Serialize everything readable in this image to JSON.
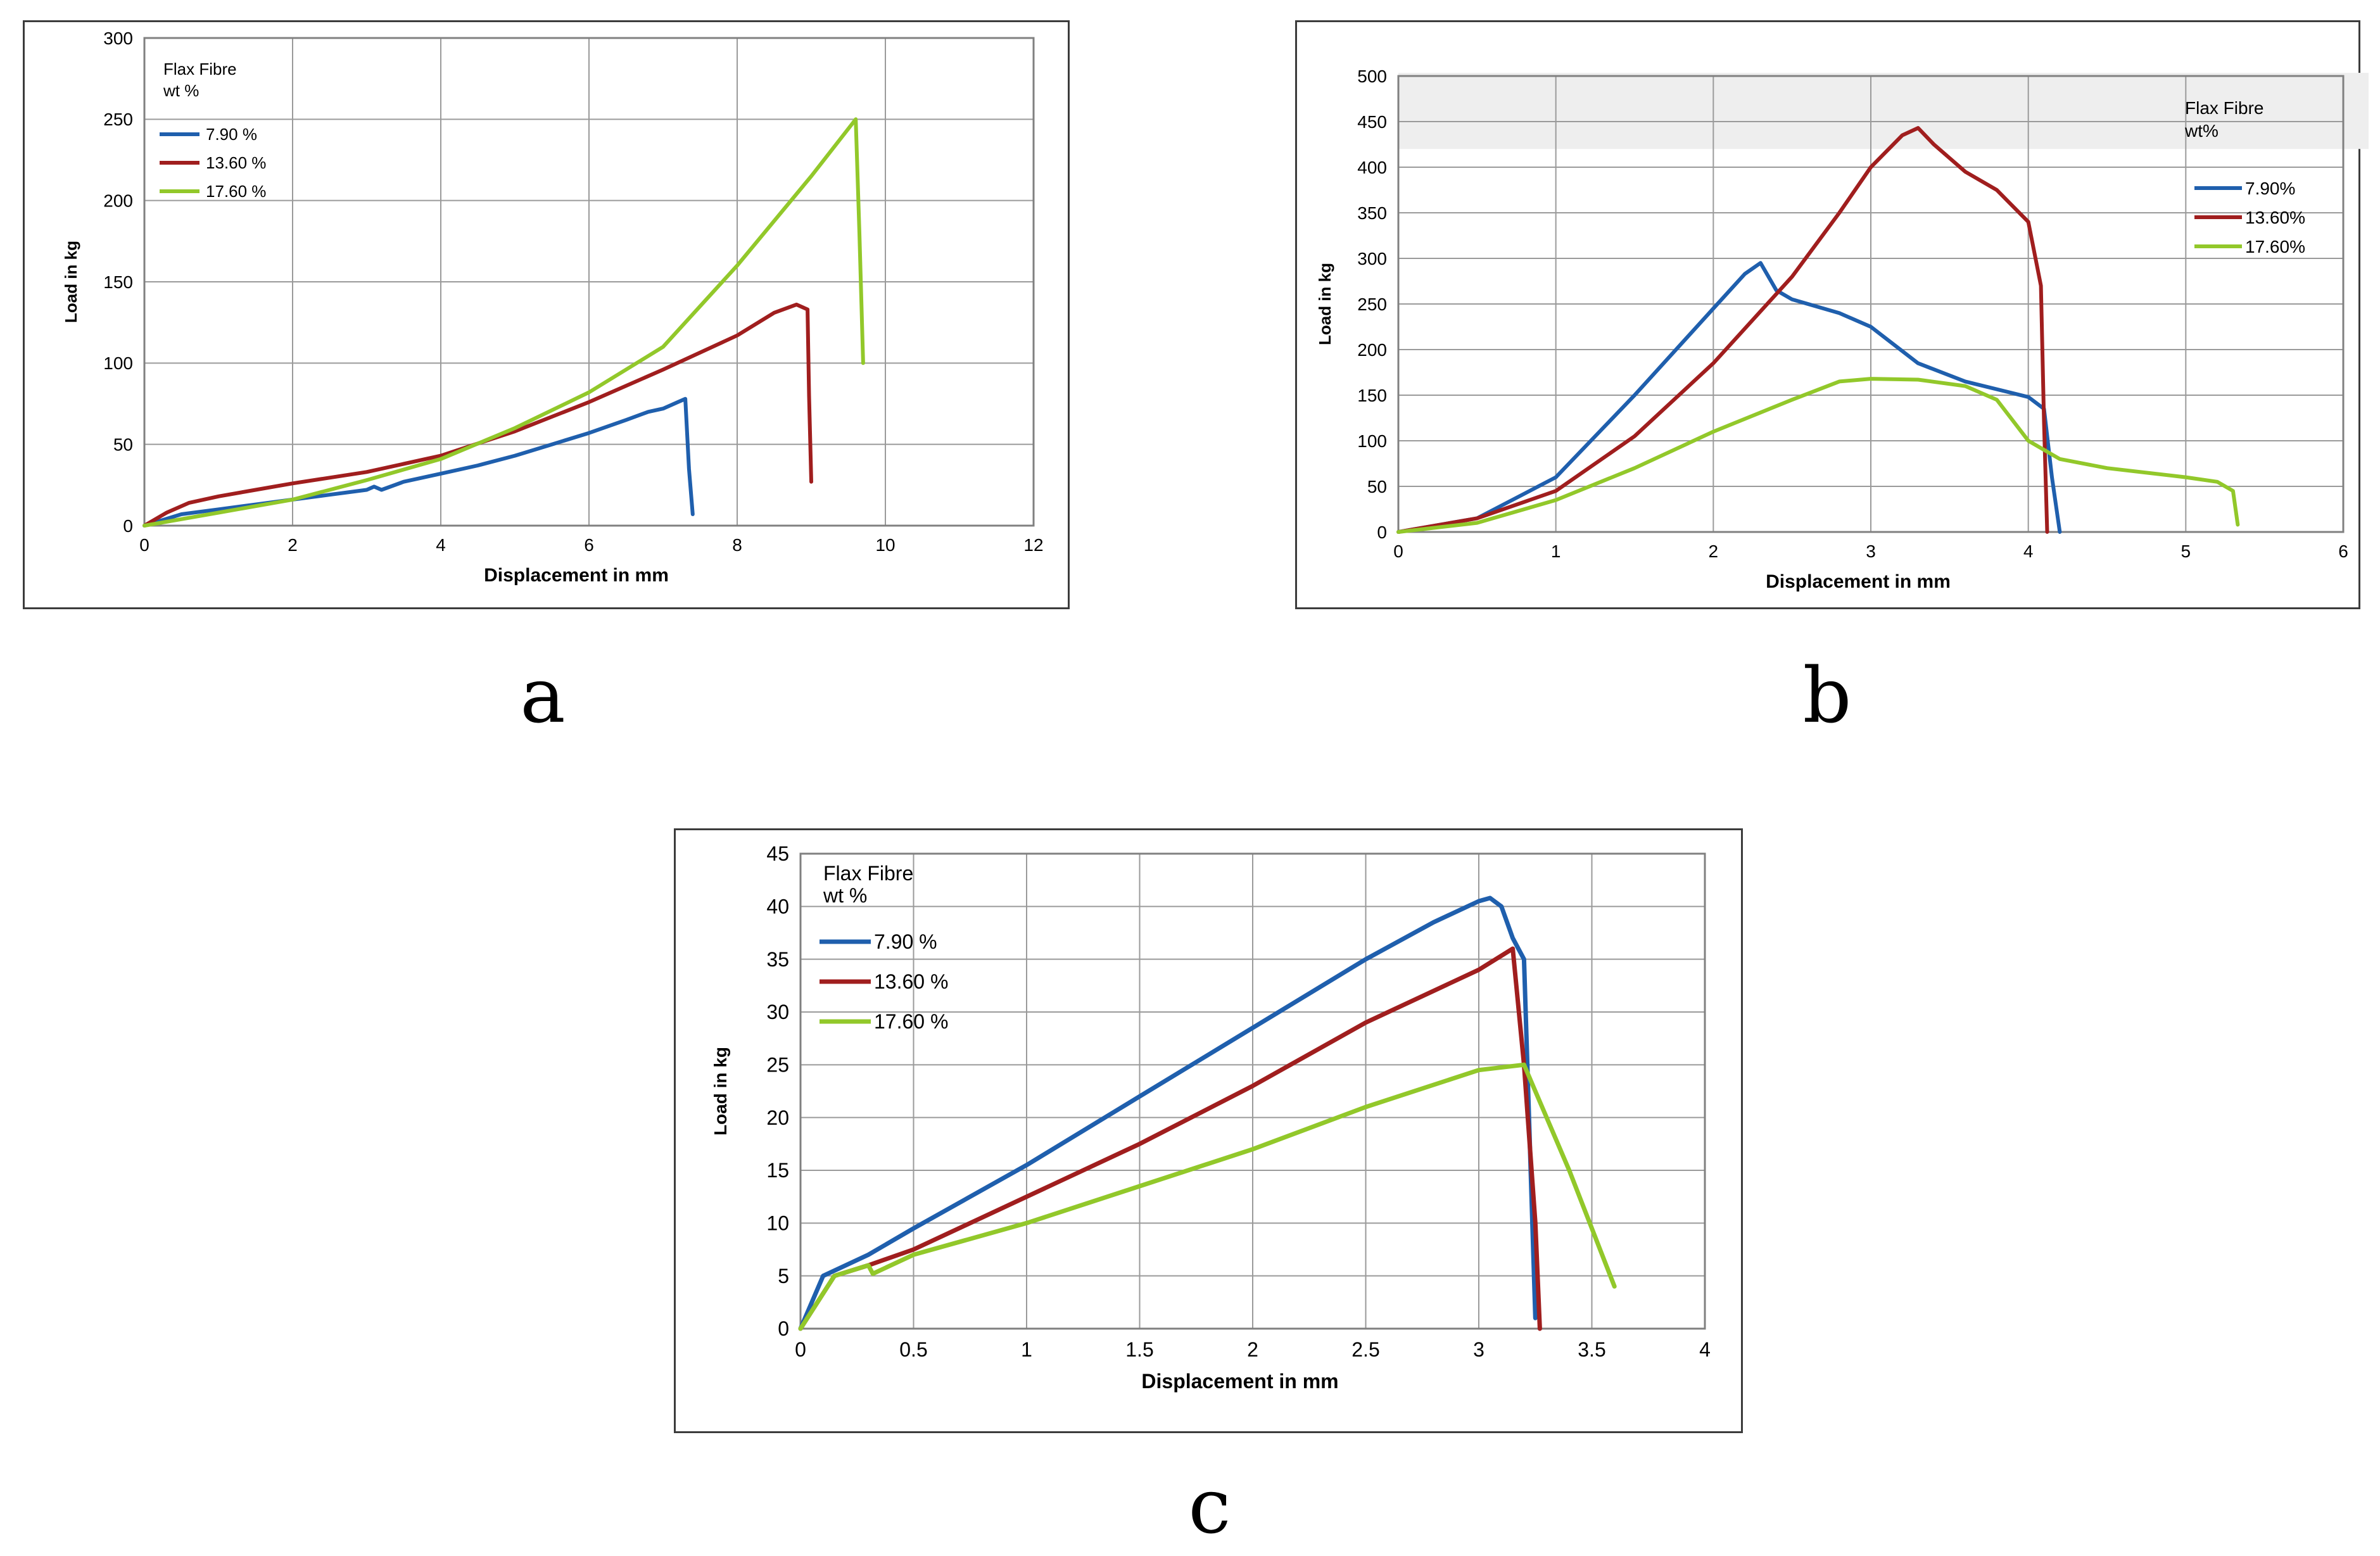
{
  "colors": {
    "s1": "#1f5fad",
    "s2": "#a01e1e",
    "s3": "#92c82a"
  },
  "chart_data": [
    {
      "panel": "a",
      "type": "line",
      "title": "",
      "xlabel": "Displacement in mm",
      "ylabel": "Load in kg",
      "xlim": [
        0,
        12
      ],
      "ylim": [
        0,
        300
      ],
      "xticks": [
        0,
        2,
        4,
        6,
        8,
        10,
        12
      ],
      "yticks": [
        0,
        50,
        100,
        150,
        200,
        250,
        300
      ],
      "legend_title": [
        "Flax Fibre",
        "wt %"
      ],
      "legend_position": "top-left",
      "series": [
        {
          "name": "7.90 %",
          "x": [
            0,
            0.5,
            1,
            1.5,
            2,
            2.5,
            3,
            3.1,
            3.2,
            3.5,
            4,
            4.5,
            5,
            5.5,
            6,
            6.5,
            6.8,
            7,
            7.2,
            7.3,
            7.35,
            7.4
          ],
          "y": [
            0,
            7,
            10,
            13,
            16,
            19,
            22,
            24,
            22,
            27,
            32,
            37,
            43,
            50,
            57,
            65,
            70,
            72,
            76,
            78,
            35,
            7
          ]
        },
        {
          "name": "13.60 %",
          "x": [
            0,
            0.3,
            0.6,
            1,
            1.5,
            2,
            3,
            4,
            5,
            6,
            7,
            8,
            8.5,
            8.8,
            8.95,
            8.97,
            9.0
          ],
          "y": [
            0,
            8,
            14,
            18,
            22,
            26,
            33,
            43,
            58,
            76,
            96,
            117,
            131,
            136,
            133,
            80,
            27
          ]
        },
        {
          "name": "17.60 %",
          "x": [
            0,
            1,
            2,
            3,
            4,
            5,
            6,
            7,
            8,
            9,
            9.6,
            9.65,
            9.7
          ],
          "y": [
            0,
            8,
            16,
            28,
            41,
            60,
            82,
            110,
            160,
            215,
            250,
            180,
            100
          ]
        }
      ]
    },
    {
      "panel": "b",
      "type": "line",
      "title": "",
      "xlabel": "Displacement in mm",
      "ylabel": "Load in kg",
      "xlim": [
        0,
        6
      ],
      "ylim": [
        0,
        500
      ],
      "xticks": [
        0,
        1,
        2,
        3,
        4,
        5,
        6
      ],
      "yticks": [
        0,
        50,
        100,
        150,
        200,
        250,
        300,
        350,
        400,
        450,
        500
      ],
      "legend_title": [
        "Flax Fibre",
        "wt%"
      ],
      "legend_position": "top-right",
      "series": [
        {
          "name": "7.90%",
          "x": [
            0,
            0.5,
            1,
            1.5,
            2,
            2.2,
            2.3,
            2.4,
            2.5,
            2.8,
            3,
            3.3,
            3.6,
            4,
            4.1,
            4.15,
            4.2
          ],
          "y": [
            0,
            15,
            60,
            150,
            245,
            283,
            295,
            265,
            255,
            240,
            225,
            185,
            165,
            148,
            135,
            60,
            0
          ]
        },
        {
          "name": "13.60%",
          "x": [
            0,
            0.5,
            1,
            1.5,
            2,
            2.5,
            2.8,
            3,
            3.2,
            3.3,
            3.4,
            3.6,
            3.8,
            4,
            4.08,
            4.1,
            4.12
          ],
          "y": [
            0,
            15,
            45,
            105,
            185,
            280,
            350,
            400,
            435,
            443,
            425,
            395,
            375,
            340,
            270,
            120,
            0
          ]
        },
        {
          "name": "17.60%",
          "x": [
            0,
            0.5,
            1,
            1.5,
            2,
            2.5,
            2.8,
            3,
            3.3,
            3.6,
            3.8,
            4,
            4.2,
            4.5,
            5,
            5.2,
            5.3,
            5.33
          ],
          "y": [
            0,
            10,
            35,
            70,
            110,
            145,
            165,
            168,
            167,
            160,
            145,
            100,
            80,
            70,
            60,
            55,
            45,
            8
          ]
        }
      ]
    },
    {
      "panel": "c",
      "type": "line",
      "title": "",
      "xlabel": "Displacement in mm",
      "ylabel": "Load in kg",
      "xlim": [
        0,
        4
      ],
      "ylim": [
        0,
        45
      ],
      "xticks": [
        0,
        0.5,
        1,
        1.5,
        2,
        2.5,
        3,
        3.5,
        4
      ],
      "xtick_labels": [
        "0",
        "0.5",
        "1",
        "1.5",
        "2",
        "2.5",
        "3",
        "3.5",
        "4"
      ],
      "yticks": [
        0,
        5,
        10,
        15,
        20,
        25,
        30,
        35,
        40,
        45
      ],
      "legend_title": [
        "Flax Fibre",
        "wt %"
      ],
      "legend_position": "top-left",
      "series": [
        {
          "name": "7.90 %",
          "x": [
            0,
            0.1,
            0.3,
            0.5,
            1,
            1.5,
            2,
            2.5,
            2.8,
            3,
            3.05,
            3.1,
            3.15,
            3.2,
            3.25
          ],
          "y": [
            0,
            5,
            7,
            9.5,
            15.5,
            22,
            28.5,
            35,
            38.5,
            40.5,
            40.8,
            40,
            37,
            35,
            1
          ]
        },
        {
          "name": "13.60 %",
          "x": [
            0,
            0.15,
            0.3,
            0.5,
            1,
            1.5,
            2,
            2.5,
            3,
            3.15,
            3.2,
            3.25,
            3.27
          ],
          "y": [
            0,
            5,
            6,
            7.5,
            12.5,
            17.5,
            23,
            29,
            34,
            36,
            25,
            10,
            0
          ]
        },
        {
          "name": "17.60 %",
          "x": [
            0,
            0.15,
            0.3,
            0.32,
            0.5,
            1,
            1.5,
            2,
            2.5,
            3,
            3.2,
            3.4,
            3.6
          ],
          "y": [
            0,
            5,
            6,
            5.2,
            7,
            10,
            13.5,
            17,
            21,
            24.5,
            25,
            15,
            4
          ]
        }
      ]
    }
  ],
  "panel_letters": {
    "a": "a",
    "b": "b",
    "c": "c"
  }
}
